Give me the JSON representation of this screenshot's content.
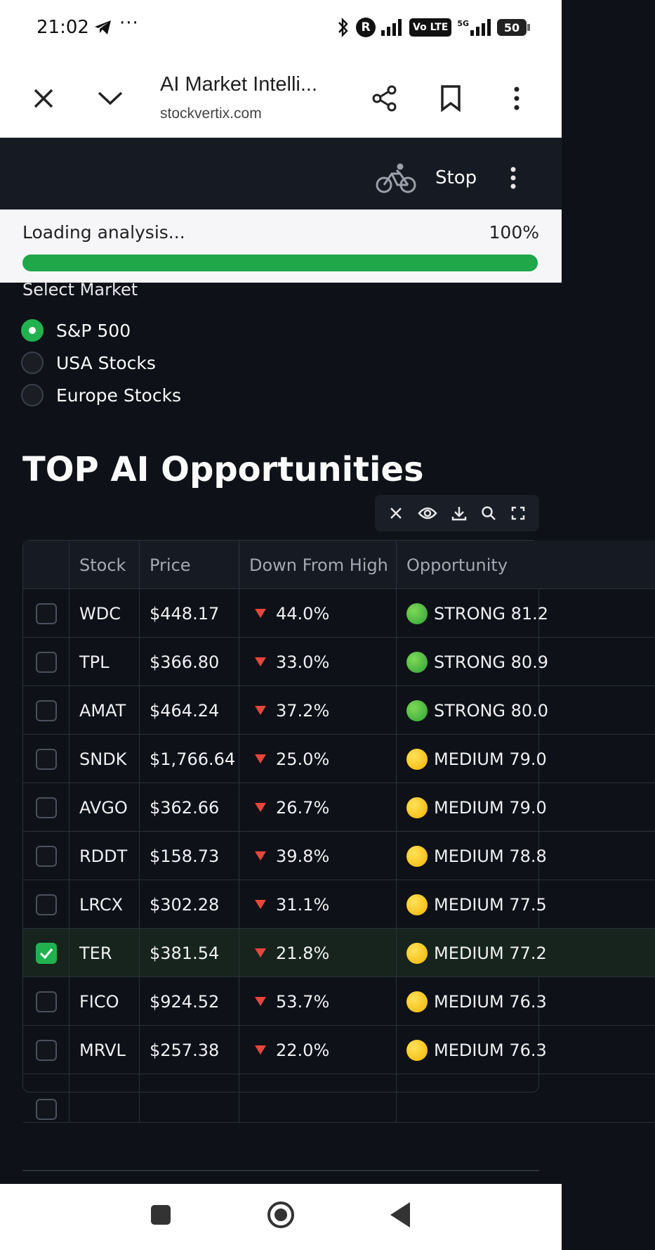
{
  "status_bar": {
    "time": "21:02",
    "more": "···",
    "network": "5G",
    "volte": "Vo LTE",
    "battery": "50"
  },
  "browser": {
    "title": "AI Market Intelli...",
    "url": "stockvertix.com"
  },
  "app_header": {
    "stop_label": "Stop"
  },
  "loading": {
    "label": "Loading analysis...",
    "percent_label": "100%",
    "progress": 1.0
  },
  "market": {
    "label": "Select Market",
    "options": [
      "S&P 500",
      "USA Stocks",
      "Europe Stocks"
    ],
    "selected": "S&P 500"
  },
  "section_title": "TOP AI Opportunities",
  "table": {
    "columns": [
      "Stock",
      "Price",
      "Down From High",
      "Opportunity"
    ],
    "rows": [
      {
        "stock": "WDC",
        "price": "$448.17",
        "down": "44.0%",
        "opp": "STRONG 81.2",
        "color": "green",
        "checked": false
      },
      {
        "stock": "TPL",
        "price": "$366.80",
        "down": "33.0%",
        "opp": "STRONG 80.9",
        "color": "green",
        "checked": false
      },
      {
        "stock": "AMAT",
        "price": "$464.24",
        "down": "37.2%",
        "opp": "STRONG 80.0",
        "color": "green",
        "checked": false
      },
      {
        "stock": "SNDK",
        "price": "$1,766.64",
        "down": "25.0%",
        "opp": "MEDIUM 79.0",
        "color": "yellow",
        "checked": false
      },
      {
        "stock": "AVGO",
        "price": "$362.66",
        "down": "26.7%",
        "opp": "MEDIUM 79.0",
        "color": "yellow",
        "checked": false
      },
      {
        "stock": "RDDT",
        "price": "$158.73",
        "down": "39.8%",
        "opp": "MEDIUM 78.8",
        "color": "yellow",
        "checked": false
      },
      {
        "stock": "LRCX",
        "price": "$302.28",
        "down": "31.1%",
        "opp": "MEDIUM 77.5",
        "color": "yellow",
        "checked": false
      },
      {
        "stock": "TER",
        "price": "$381.54",
        "down": "21.8%",
        "opp": "MEDIUM 77.2",
        "color": "yellow",
        "checked": true
      },
      {
        "stock": "FICO",
        "price": "$924.52",
        "down": "53.7%",
        "opp": "MEDIUM 76.3",
        "color": "yellow",
        "checked": false
      },
      {
        "stock": "MRVL",
        "price": "$257.38",
        "down": "22.0%",
        "opp": "MEDIUM 76.3",
        "color": "yellow",
        "checked": false
      }
    ]
  },
  "table_tools": [
    "close-icon",
    "eye-icon",
    "download-icon",
    "search-icon",
    "fullscreen-icon"
  ]
}
